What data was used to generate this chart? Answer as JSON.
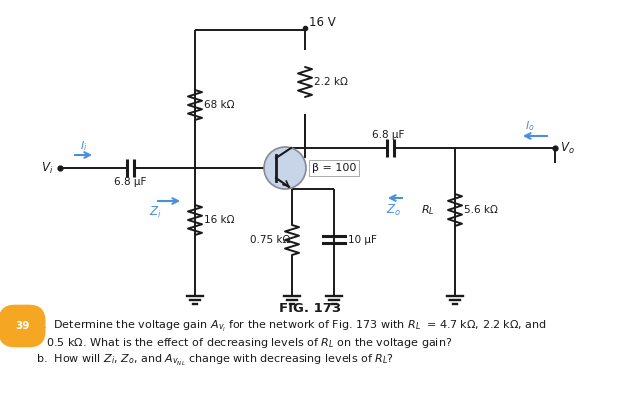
{
  "bg_color": "#ffffff",
  "fig_label": "FIG. 173",
  "problem_number": "39",
  "problem_number_bg": "#f5a623",
  "circuit_color": "#1a1a1a",
  "blue_color": "#4a90d9",
  "resistor_68k": "68 kΩ",
  "resistor_22k": "2.2 kΩ",
  "resistor_16k": "16 kΩ",
  "resistor_075k": "0.75 kΩ",
  "resistor_56k": "5.6 kΩ",
  "cap_68u_in": "6.8 μF",
  "cap_68u_out": "6.8 μF",
  "cap_10u": "10 μF",
  "voltage": "16 V",
  "beta": "β = 100"
}
